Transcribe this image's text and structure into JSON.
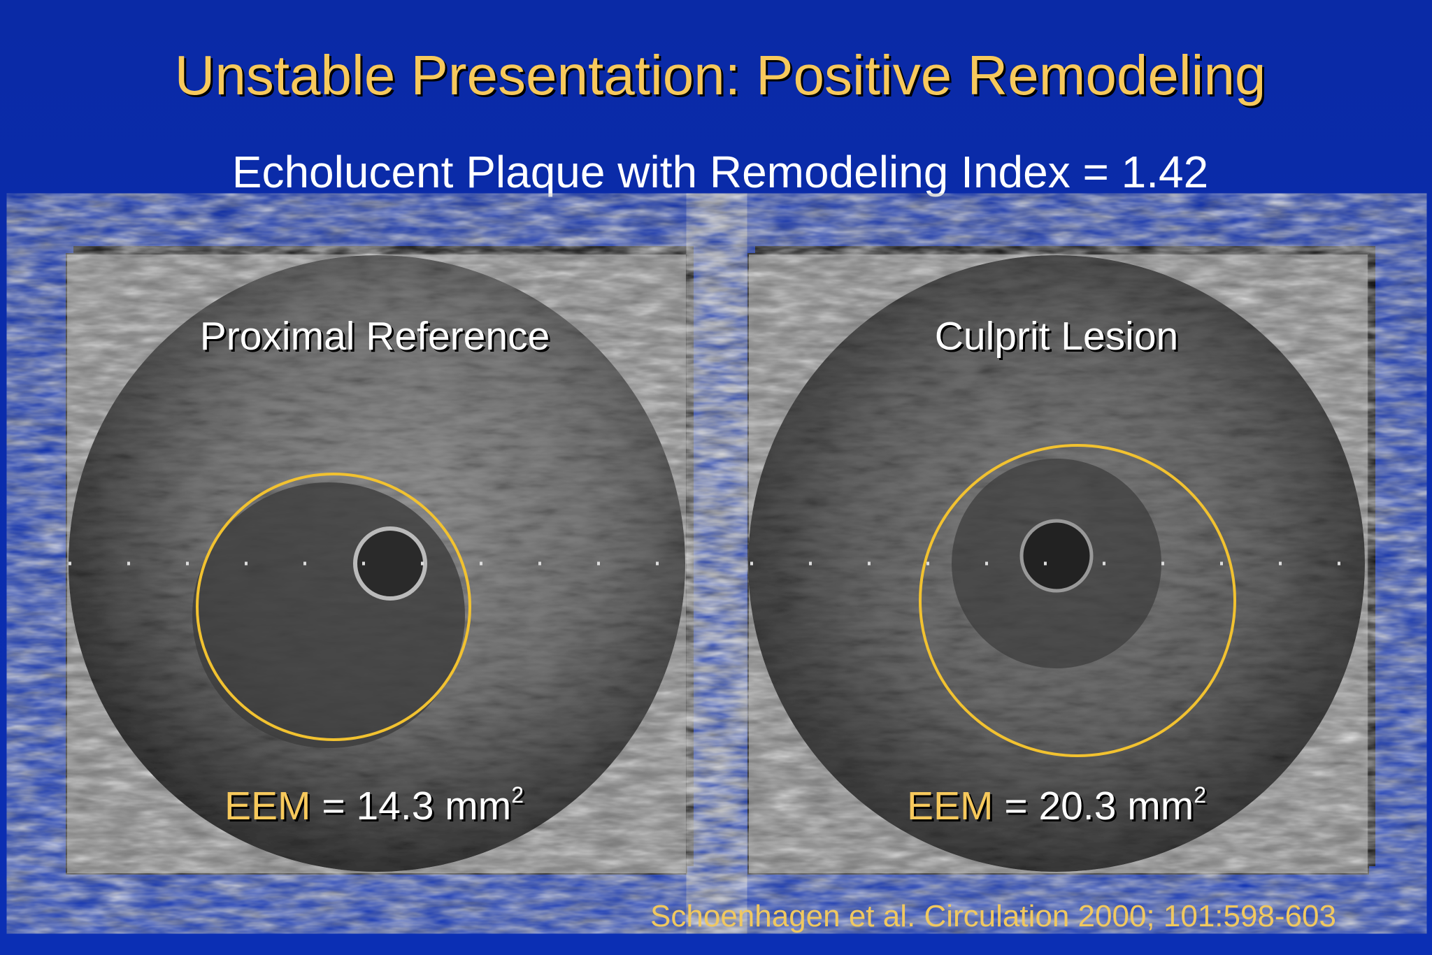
{
  "header": {
    "title": "Unstable Presentation: Positive Remodeling",
    "subtitle": "Echolucent Plaque with Remodeling Index = 1.42"
  },
  "panels": [
    {
      "label": "Proximal Reference",
      "measure_name": "EEM",
      "measure_value": "= 14.3 mm",
      "measure_power": "2"
    },
    {
      "label": "Culprit Lesion",
      "measure_name": "EEM",
      "measure_value": "= 20.3 mm",
      "measure_power": "2"
    }
  ],
  "citation": "Schoenhagen et al. Circulation 2000; 101:598-603"
}
